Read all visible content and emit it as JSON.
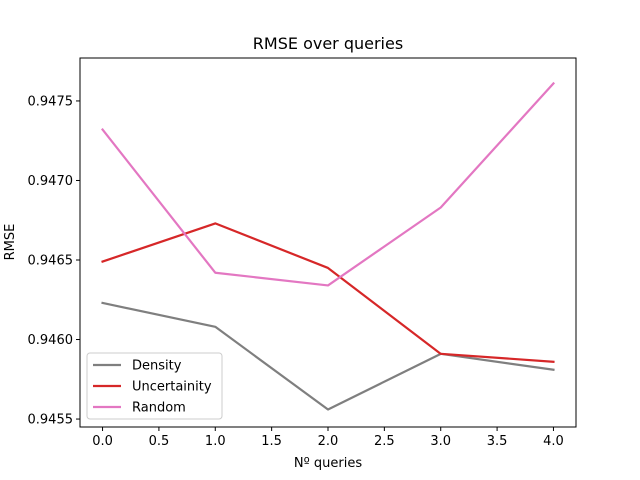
{
  "chart_data": {
    "type": "line",
    "title": "RMSE over queries",
    "xlabel": "Nº queries",
    "ylabel": "RMSE",
    "x": [
      0.0,
      1.0,
      2.0,
      3.0,
      4.0
    ],
    "xlim": [
      -0.2,
      4.2
    ],
    "ylim": [
      0.94545,
      0.94777
    ],
    "xticks": [
      0.0,
      0.5,
      1.0,
      1.5,
      2.0,
      2.5,
      3.0,
      3.5,
      4.0
    ],
    "xtick_labels": [
      "0.0",
      "0.5",
      "1.0",
      "1.5",
      "2.0",
      "2.5",
      "3.0",
      "3.5",
      "4.0"
    ],
    "yticks": [
      0.9455,
      0.946,
      0.9465,
      0.947,
      0.9475
    ],
    "ytick_labels": [
      "0.9455",
      "0.9460",
      "0.9465",
      "0.9470",
      "0.9475"
    ],
    "grid": false,
    "legend_position": "lower-left",
    "series": [
      {
        "name": "Density",
        "color": "#7f7f7f",
        "values": [
          0.94623,
          0.94608,
          0.94556,
          0.94591,
          0.94581
        ]
      },
      {
        "name": "Uncertainity",
        "color": "#d62728",
        "values": [
          0.94649,
          0.94673,
          0.94645,
          0.94591,
          0.94586
        ]
      },
      {
        "name": "Random",
        "color": "#e377c2",
        "values": [
          0.94732,
          0.94642,
          0.94634,
          0.94683,
          0.94761
        ]
      }
    ]
  }
}
